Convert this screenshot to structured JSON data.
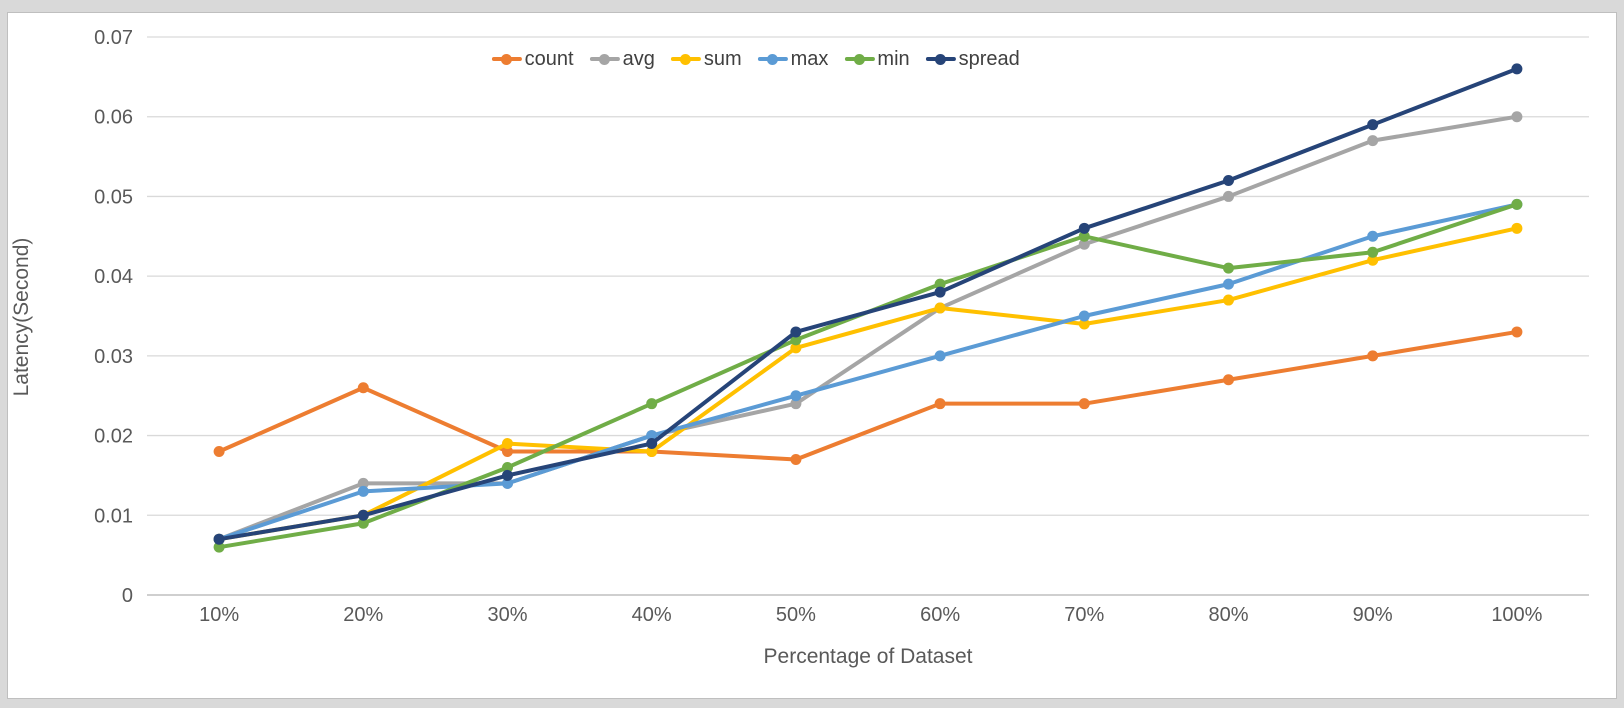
{
  "page": {
    "background_color": "#d9d9d9",
    "panel_background": "#ffffff",
    "panel_border_color": "#bfbfbf",
    "gridline_color": "#d9d9d9",
    "axis_line_color": "#bfbfbf",
    "tick_text_color": "#595959",
    "legend_text_color": "#404040"
  },
  "chart_data": {
    "type": "line",
    "title": "",
    "xlabel": "Percentage of Dataset",
    "ylabel": "Latency(Second)",
    "categories": [
      "10%",
      "20%",
      "30%",
      "40%",
      "50%",
      "60%",
      "70%",
      "80%",
      "90%",
      "100%"
    ],
    "ylim": [
      0,
      0.07
    ],
    "ytick_step": 0.01,
    "ytick_labels": [
      "0",
      "0.01",
      "0.02",
      "0.03",
      "0.04",
      "0.05",
      "0.06",
      "0.07"
    ],
    "grid": true,
    "legend_position": "top-center",
    "marker": "circle",
    "series": [
      {
        "name": "count",
        "color": "#ED7D31",
        "values": [
          0.018,
          0.026,
          0.018,
          0.018,
          0.017,
          0.024,
          0.024,
          0.027,
          0.03,
          0.033
        ]
      },
      {
        "name": "avg",
        "color": "#A5A5A5",
        "values": [
          0.007,
          0.014,
          0.014,
          0.02,
          0.024,
          0.036,
          0.044,
          0.05,
          0.057,
          0.06
        ]
      },
      {
        "name": "sum",
        "color": "#FFC000",
        "values": [
          0.007,
          0.01,
          0.019,
          0.018,
          0.031,
          0.036,
          0.034,
          0.037,
          0.042,
          0.046
        ]
      },
      {
        "name": "max",
        "color": "#5B9BD5",
        "values": [
          0.007,
          0.013,
          0.014,
          0.02,
          0.025,
          0.03,
          0.035,
          0.039,
          0.045,
          0.049
        ]
      },
      {
        "name": "min",
        "color": "#70AD47",
        "values": [
          0.006,
          0.009,
          0.016,
          0.024,
          0.032,
          0.039,
          0.045,
          0.041,
          0.043,
          0.049
        ]
      },
      {
        "name": "spread",
        "color": "#264478",
        "values": [
          0.007,
          0.01,
          0.015,
          0.019,
          0.033,
          0.038,
          0.046,
          0.052,
          0.059,
          0.066
        ]
      }
    ]
  }
}
